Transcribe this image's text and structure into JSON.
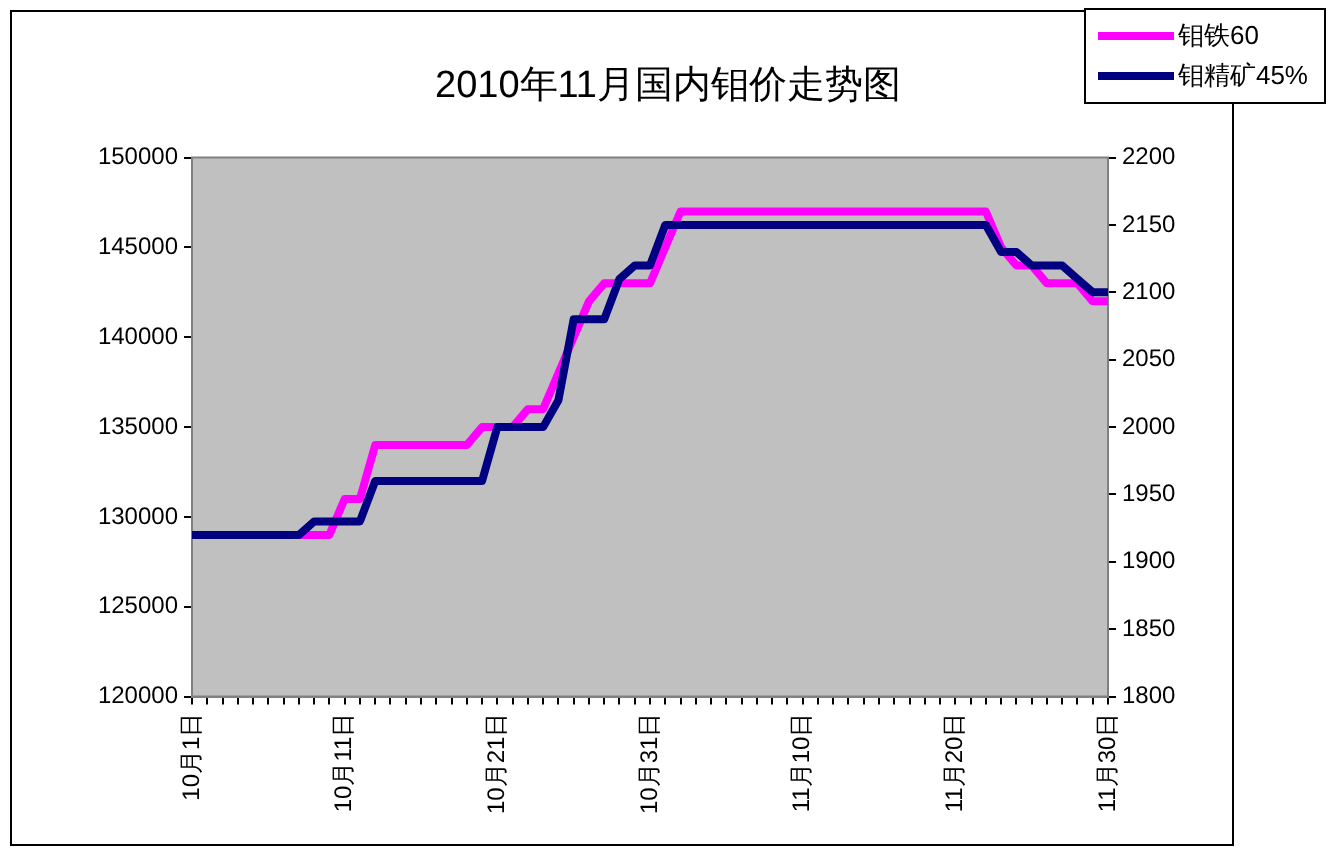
{
  "chart_data": {
    "type": "line",
    "title": "2010年11月国内钼价走势图",
    "categories": [
      "10月1日",
      null,
      null,
      null,
      null,
      null,
      null,
      null,
      null,
      null,
      "10月11日",
      null,
      null,
      null,
      null,
      null,
      null,
      null,
      null,
      null,
      "10月21日",
      null,
      null,
      null,
      null,
      null,
      null,
      null,
      null,
      null,
      "10月31日",
      null,
      null,
      null,
      null,
      null,
      null,
      null,
      null,
      null,
      "11月10日",
      null,
      null,
      null,
      null,
      null,
      null,
      null,
      null,
      null,
      "11月20日",
      null,
      null,
      null,
      null,
      null,
      null,
      null,
      null,
      null,
      "11月30日"
    ],
    "series": [
      {
        "name": "钼铁60",
        "color": "#ff00ff",
        "axis": "y",
        "values": [
          null,
          null,
          null,
          null,
          null,
          null,
          null,
          129000,
          129000,
          129000,
          131000,
          131000,
          134000,
          134000,
          134000,
          134000,
          134000,
          134000,
          134000,
          135000,
          135000,
          135000,
          136000,
          136000,
          138000,
          140000,
          142000,
          143000,
          143000,
          143000,
          143000,
          145000,
          147000,
          147000,
          147000,
          147000,
          147000,
          147000,
          147000,
          147000,
          147000,
          147000,
          147000,
          147000,
          147000,
          147000,
          147000,
          147000,
          147000,
          147000,
          147000,
          147000,
          147000,
          145000,
          144000,
          144000,
          143000,
          143000,
          143000,
          142000,
          142000
        ]
      },
      {
        "name": "钼精矿45%",
        "color": "#000080",
        "axis": "y2",
        "values": [
          1920,
          1920,
          1920,
          1920,
          1920,
          1920,
          1920,
          1920,
          1930,
          1930,
          1930,
          1930,
          1960,
          1960,
          1960,
          1960,
          1960,
          1960,
          1960,
          1960,
          2000,
          2000,
          2000,
          2000,
          2020,
          2080,
          2080,
          2080,
          2110,
          2120,
          2120,
          2150,
          2150,
          2150,
          2150,
          2150,
          2150,
          2150,
          2150,
          2150,
          2150,
          2150,
          2150,
          2150,
          2150,
          2150,
          2150,
          2150,
          2150,
          2150,
          2150,
          2150,
          2150,
          2130,
          2130,
          2120,
          2120,
          2120,
          2110,
          2100,
          2100
        ]
      }
    ],
    "ylim": [
      120000,
      150000
    ],
    "yticks": [
      120000,
      125000,
      130000,
      135000,
      140000,
      145000,
      150000
    ],
    "y2lim": [
      1800,
      2200
    ],
    "y2ticks": [
      1800,
      1850,
      1900,
      1950,
      2000,
      2050,
      2100,
      2150,
      2200
    ],
    "legend": "top right",
    "grid": false,
    "marker": "none",
    "line_style": "solid"
  }
}
